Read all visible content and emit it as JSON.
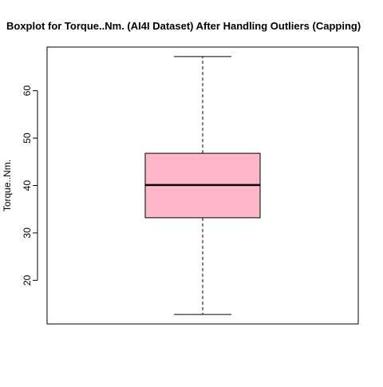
{
  "chart_data": {
    "type": "boxplot",
    "title": "Boxplot for Torque..Nm. (AI4I Dataset) After Handling Outliers (Capping)",
    "xlabel": "",
    "ylabel": "Torque..Nm.",
    "ylim": [
      10.8,
      69.2
    ],
    "yticks": [
      20,
      30,
      40,
      50,
      60
    ],
    "series": [
      {
        "name": "Torque..Nm.",
        "min": 12.8,
        "q1": 33.2,
        "median": 40.1,
        "q3": 46.8,
        "max": 67.2,
        "fill": "#ffb6c8"
      }
    ],
    "colors": {
      "box_fill": "#ffb6c8",
      "stroke": "#000000"
    }
  }
}
